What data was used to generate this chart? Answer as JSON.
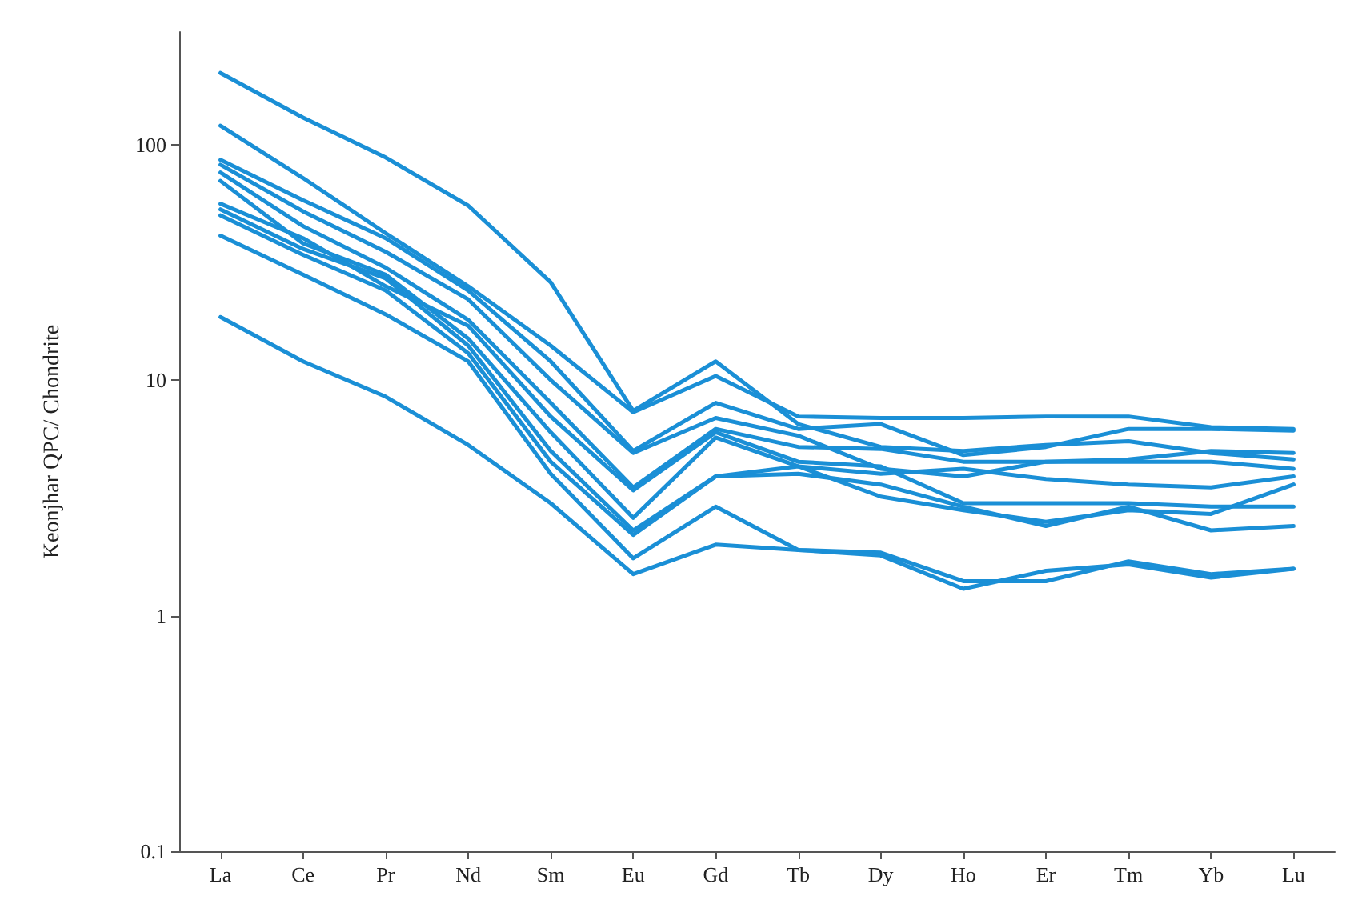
{
  "chart_data": {
    "type": "line",
    "ylabel": "Keonjhar QPC/ Chondrite",
    "categories": [
      "La",
      "Ce",
      "Pr",
      "Nd",
      "Sm",
      "Eu",
      "Gd",
      "Tb",
      "Dy",
      "Ho",
      "Er",
      "Tm",
      "Yb",
      "Lu"
    ],
    "log": "y",
    "ylim": [
      0.1,
      300
    ],
    "yticks": [
      0.1,
      1,
      10,
      100
    ],
    "grid": false,
    "marker": "none",
    "line_style": "solid",
    "series": [
      {
        "color": "#1a8fd6",
        "values": [
          201,
          130,
          88,
          55,
          26,
          7.4,
          12,
          6.5,
          5.2,
          5.0,
          5.3,
          5.5,
          4.9,
          4.6
        ]
      },
      {
        "color": "#1a8fd6",
        "values": [
          120,
          72,
          42,
          25,
          14,
          7.3,
          10.4,
          7.0,
          6.9,
          6.9,
          7.0,
          7.0,
          6.3,
          6.2
        ]
      },
      {
        "color": "#1a8fd6",
        "values": [
          86,
          58,
          40,
          24,
          12,
          5.0,
          8.0,
          6.2,
          6.5,
          4.8,
          5.2,
          6.2,
          6.2,
          6.1
        ]
      },
      {
        "color": "#1a8fd6",
        "values": [
          82,
          52,
          35,
          22,
          10,
          4.9,
          6.9,
          5.8,
          4.2,
          3.9,
          4.5,
          4.5,
          4.5,
          4.2
        ]
      },
      {
        "color": "#1a8fd6",
        "values": [
          76,
          45,
          30,
          18,
          8,
          3.5,
          6.2,
          5.2,
          5.1,
          4.5,
          4.5,
          4.6,
          5.0,
          4.9
        ]
      },
      {
        "color": "#1a8fd6",
        "values": [
          70,
          38,
          28,
          15,
          6,
          2.6,
          5.7,
          4.3,
          4.0,
          4.2,
          3.8,
          3.6,
          3.5,
          3.9
        ]
      },
      {
        "color": "#1a8fd6",
        "values": [
          56,
          40,
          25,
          17,
          7,
          3.4,
          6.0,
          4.5,
          4.3,
          3.0,
          3.0,
          3.0,
          2.9,
          2.9
        ]
      },
      {
        "color": "#1a8fd6",
        "values": [
          53,
          36,
          27,
          14,
          5,
          2.3,
          3.9,
          4.3,
          3.2,
          2.8,
          2.5,
          2.8,
          2.7,
          3.6
        ]
      },
      {
        "color": "#1a8fd6",
        "values": [
          50,
          34,
          24,
          13,
          4.5,
          2.2,
          3.9,
          4.0,
          3.6,
          2.9,
          2.4,
          2.9,
          2.3,
          2.4
        ]
      },
      {
        "color": "#1a8fd6",
        "values": [
          41,
          28,
          19,
          12,
          4,
          1.75,
          2.9,
          1.9,
          1.85,
          1.4,
          1.4,
          1.7,
          1.5,
          1.58
        ]
      },
      {
        "color": "#1a8fd6",
        "values": [
          18.5,
          12,
          8.5,
          5.3,
          3.0,
          1.5,
          2.0,
          1.9,
          1.8,
          1.3,
          1.55,
          1.65,
          1.45,
          1.58
        ]
      }
    ]
  }
}
